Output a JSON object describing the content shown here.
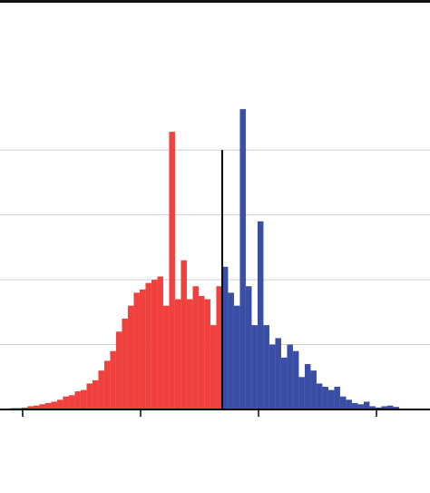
{
  "chart_data": {
    "type": "histogram",
    "series": [
      {
        "color": "#f0413e",
        "bins": [
          -1.08,
          -0.58,
          -0.08,
          0.42,
          0.92,
          1.42,
          1.92,
          2.42,
          2.92,
          3.42,
          3.92,
          4.42,
          4.92,
          5.42,
          5.92,
          6.42,
          6.92,
          7.42,
          7.92,
          8.42,
          8.92,
          9.42,
          9.92,
          10.42,
          10.92,
          11.42,
          11.92,
          12.42,
          12.92,
          13.42,
          13.92,
          14.42,
          14.92,
          15.42,
          15.92,
          16.42,
          16.92
        ],
        "counts": [
          0.02,
          0.02,
          0.03,
          0.05,
          0.06,
          0.08,
          0.1,
          0.12,
          0.15,
          0.2,
          0.22,
          0.28,
          0.3,
          0.4,
          0.45,
          0.6,
          0.75,
          0.9,
          1.2,
          1.4,
          1.6,
          1.8,
          1.85,
          1.95,
          2.0,
          2.05,
          1.6,
          4.28,
          1.7,
          2.3,
          1.7,
          1.9,
          1.75,
          1.7,
          1.3,
          1.9
        ]
      },
      {
        "color": "#3a4ea6",
        "bins": [
          16.92,
          17.42,
          17.92,
          18.42,
          18.92,
          19.42,
          19.92,
          20.42,
          20.92,
          21.42,
          21.92,
          22.42,
          22.92,
          23.42,
          23.92,
          24.42,
          24.92,
          25.42,
          25.92,
          26.42,
          26.92,
          27.42,
          27.92,
          28.42,
          28.92,
          29.42,
          29.92,
          30.42,
          30.92,
          31.42,
          31.92
        ],
        "counts": [
          2.2,
          1.8,
          1.6,
          4.63,
          1.9,
          1.3,
          2.9,
          1.3,
          1.0,
          1.1,
          0.8,
          1.0,
          0.9,
          0.5,
          0.7,
          0.6,
          0.4,
          0.35,
          0.3,
          0.35,
          0.2,
          0.15,
          0.1,
          0.08,
          0.12,
          0.05,
          0.03,
          0.05,
          0.06,
          0.04
        ]
      }
    ],
    "vline": {
      "x": 16.92,
      "top": 4
    },
    "xlim": [
      -1.92,
      34.54
    ],
    "xticks": [
      0,
      10,
      20,
      30
    ],
    "ylim": [
      0,
      6.27
    ],
    "yticks": [
      1,
      2,
      3,
      4
    ],
    "grid": true
  }
}
